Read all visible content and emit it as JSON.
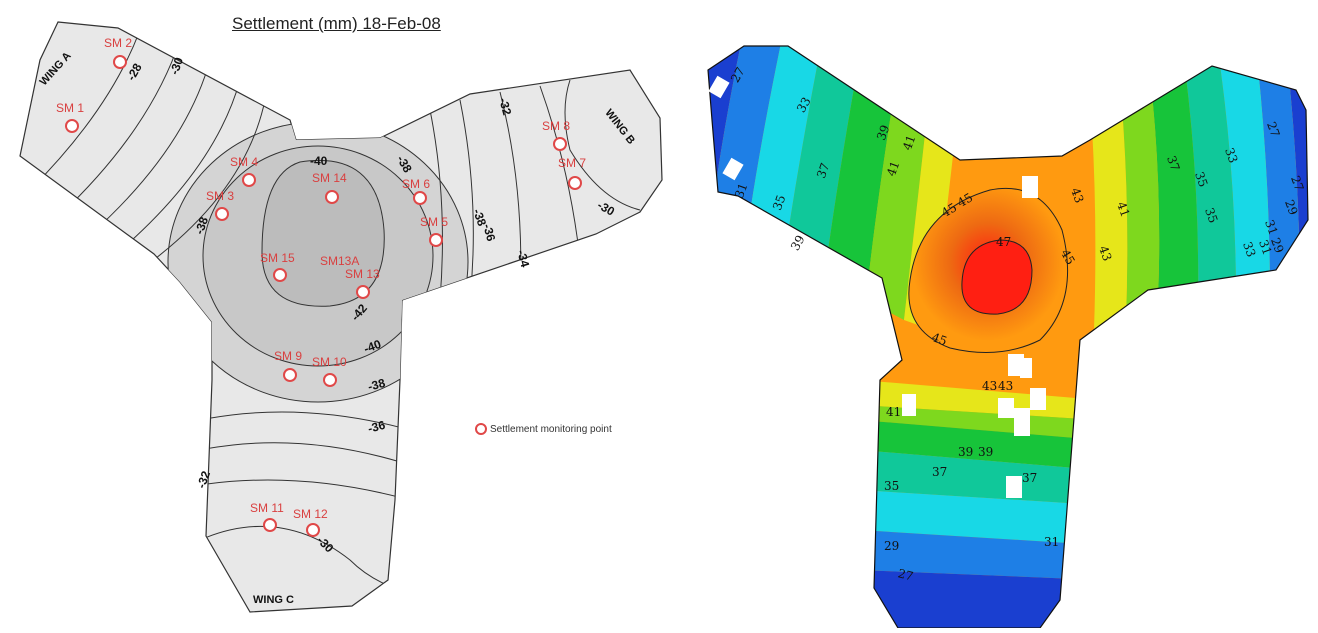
{
  "left_map": {
    "title": "Settlement (mm) 18-Feb-08",
    "wings": [
      "WING A",
      "WING B",
      "WING C"
    ],
    "legend": {
      "label": "Settlement monitoring point"
    },
    "monitoring_points": [
      {
        "id": "SM 1"
      },
      {
        "id": "SM 2"
      },
      {
        "id": "SM 3"
      },
      {
        "id": "SM 4"
      },
      {
        "id": "SM 5"
      },
      {
        "id": "SM 6"
      },
      {
        "id": "SM 7"
      },
      {
        "id": "SM 8"
      },
      {
        "id": "SM 9"
      },
      {
        "id": "SM 10"
      },
      {
        "id": "SM 11"
      },
      {
        "id": "SM 12"
      },
      {
        "id": "SM13A"
      },
      {
        "id": "SM 13"
      },
      {
        "id": "SM 14"
      },
      {
        "id": "SM 15"
      }
    ],
    "contour_labels": [
      "-28",
      "-30",
      "-40",
      "-38",
      "-38",
      "-38",
      "-36",
      "-34",
      "-32",
      "-30",
      "-42",
      "-40",
      "-38",
      "-36",
      "-32",
      "-30"
    ],
    "colors": {
      "outer": "#e8e8e8",
      "mid": "#cfcfcf",
      "inner": "#bdbdbd",
      "point": "#e04848"
    }
  },
  "right_map": {
    "contour_labels": [
      "27",
      "33",
      "37",
      "39",
      "41",
      "41",
      "31",
      "35",
      "39",
      "45",
      "45",
      "43",
      "41",
      "37",
      "35",
      "33",
      "35",
      "27",
      "29",
      "31",
      "33",
      "27",
      "29",
      "31",
      "47",
      "45",
      "43",
      "45",
      "43",
      "43",
      "41",
      "39",
      "39",
      "37",
      "37",
      "35",
      "29",
      "31",
      "27"
    ],
    "colors": {
      "dark_blue": "#1a3fd0",
      "blue": "#1e7fe6",
      "cyan": "#18d8e6",
      "teal": "#10c89a",
      "green": "#17c43a",
      "lime": "#7ed81e",
      "yellow": "#e6e61a",
      "orange": "#ff9a10",
      "dark_orange": "#ee6a12",
      "red": "#ff1f12"
    }
  }
}
